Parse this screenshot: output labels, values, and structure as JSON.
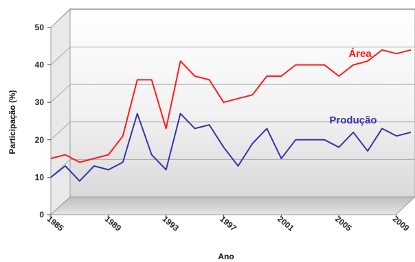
{
  "chart_data": {
    "type": "line",
    "xlabel": "Ano",
    "ylabel": "Participação (%)",
    "ylim": [
      0,
      50
    ],
    "xlim": [
      1985,
      2010
    ],
    "yticks": [
      0,
      10,
      20,
      30,
      40,
      50
    ],
    "xticks": [
      1985,
      1989,
      1993,
      1997,
      2001,
      2005,
      2009
    ],
    "grid": true,
    "legend": "inline",
    "x": [
      1985,
      1986,
      1987,
      1988,
      1989,
      1990,
      1991,
      1992,
      1993,
      1994,
      1995,
      1996,
      1997,
      1998,
      1999,
      2000,
      2001,
      2002,
      2003,
      2004,
      2005,
      2006,
      2007,
      2008,
      2009,
      2010
    ],
    "series": [
      {
        "name": "Área",
        "color": "#ff1a1a",
        "values": [
          15,
          16,
          14,
          15,
          16,
          21,
          36,
          36,
          23,
          41,
          37,
          36,
          30,
          31,
          32,
          37,
          37,
          40,
          40,
          40,
          37,
          40,
          41,
          44,
          43,
          44
        ]
      },
      {
        "name": "Produção",
        "color": "#3333aa",
        "values": [
          10,
          13,
          9,
          13,
          12,
          14,
          27,
          16,
          12,
          27,
          23,
          24,
          18,
          13,
          19,
          23,
          15,
          20,
          20,
          20,
          18,
          22,
          17,
          23,
          21,
          22
        ]
      }
    ]
  }
}
